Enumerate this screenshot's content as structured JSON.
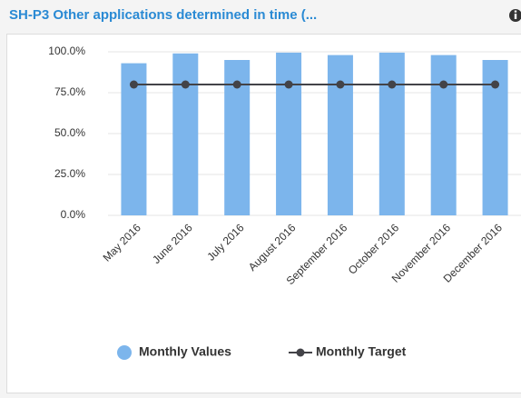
{
  "chart_data": {
    "type": "bar",
    "title": "SH-P3 Other applications determined in time (...",
    "categories": [
      "May 2016",
      "June 2016",
      "July 2016",
      "August 2016",
      "September 2016",
      "October 2016",
      "November 2016",
      "December 2016"
    ],
    "series": [
      {
        "name": "Monthly Values",
        "type": "bar",
        "color": "#7cb5ec",
        "values": [
          93,
          99,
          95,
          99.5,
          98,
          99.5,
          98,
          95
        ]
      },
      {
        "name": "Monthly Target",
        "type": "line",
        "color": "#434348",
        "values": [
          80,
          80,
          80,
          80,
          80,
          80,
          80,
          80
        ]
      }
    ],
    "ylim": [
      0,
      100
    ],
    "yticks": [
      {
        "value": 0,
        "label": "0.0%"
      },
      {
        "value": 25,
        "label": "25.0%"
      },
      {
        "value": 50,
        "label": "50.0%"
      },
      {
        "value": 75,
        "label": "75.0%"
      },
      {
        "value": 100,
        "label": "100.0%"
      }
    ],
    "grid": true,
    "legend": "bottom"
  }
}
